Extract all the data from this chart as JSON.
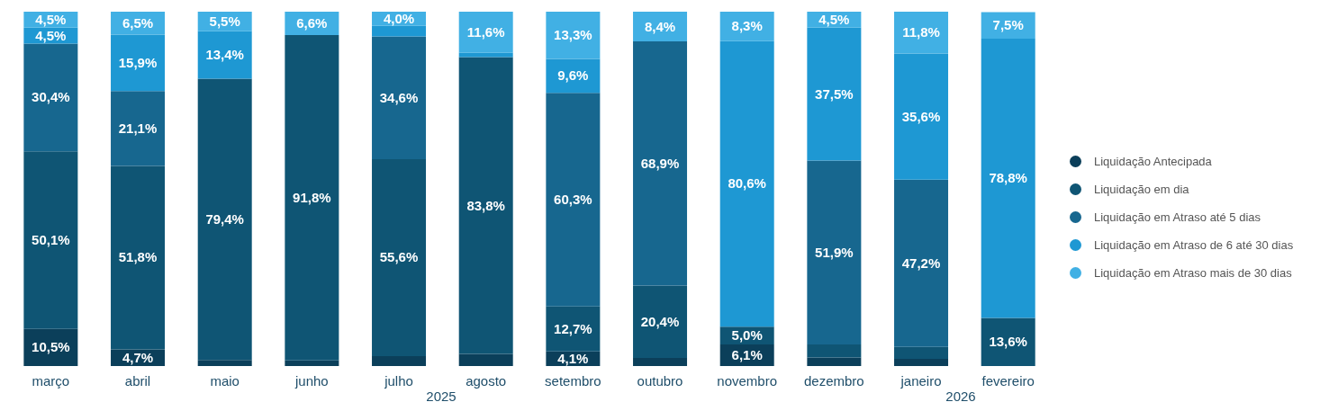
{
  "chart_data": {
    "type": "bar",
    "stacked": true,
    "categories": [
      "março",
      "abril",
      "maio",
      "junho",
      "julho",
      "agosto",
      "setembro",
      "outubro",
      "novembro",
      "dezembro",
      "janeiro",
      "fevereiro"
    ],
    "ylim": [
      0,
      100
    ],
    "tick_labels": "x",
    "legend": "right",
    "grid": false,
    "series": [
      {
        "name": "Liquidação Antecipada",
        "color": "#0b3f5a",
        "values": [
          10.5,
          4.7,
          1.7,
          1.6,
          2.8,
          3.4,
          4.1,
          2.3,
          6.1,
          2.4,
          2.0,
          0
        ],
        "value_labels": [
          "10,5%",
          "4,7%",
          null,
          null,
          null,
          null,
          "4,1%",
          null,
          "6,1%",
          null,
          null,
          null
        ]
      },
      {
        "name": "Liquidação em dia",
        "color": "#0f5574",
        "values": [
          50.1,
          51.8,
          79.4,
          91.8,
          55.6,
          83.8,
          12.7,
          20.4,
          5.0,
          3.7,
          3.4,
          13.6
        ],
        "value_labels": [
          "50,1%",
          "51,8%",
          "79,4%",
          "91,8%",
          "55,6%",
          "83,8%",
          "12,7%",
          "20,4%",
          "5,0%",
          null,
          null,
          "13,6%"
        ]
      },
      {
        "name": "Liquidação em Atraso até 5 dias",
        "color": "#17678f",
        "values": [
          30.4,
          21.1,
          0,
          0,
          34.6,
          0,
          60.3,
          68.9,
          0,
          51.9,
          47.2,
          0
        ],
        "value_labels": [
          "30,4%",
          "21,1%",
          null,
          null,
          "34,6%",
          null,
          "60,3%",
          "68,9%",
          null,
          "51,9%",
          "47,2%",
          null
        ]
      },
      {
        "name": "Liquidação em Atraso de 6 até 30 dias",
        "color": "#1e98d3",
        "values": [
          4.5,
          15.9,
          13.4,
          0,
          3.0,
          1.2,
          9.6,
          0,
          80.6,
          37.5,
          35.6,
          78.8
        ],
        "value_labels": [
          "4,5%",
          "15,9%",
          "13,4%",
          null,
          null,
          null,
          "9,6%",
          null,
          "80,6%",
          "37,5%",
          "35,6%",
          "78,8%"
        ]
      },
      {
        "name": "Liquidação em Atraso mais de 30 dias",
        "color": "#41b0e4",
        "values": [
          4.5,
          6.5,
          5.5,
          6.6,
          4.0,
          11.6,
          13.3,
          8.4,
          8.3,
          4.5,
          11.8,
          7.5
        ],
        "value_labels": [
          "4,5%",
          "6,5%",
          "5,5%",
          "6,6%",
          "4,0%",
          "11,6%",
          "13,3%",
          "8,4%",
          "8,3%",
          "4,5%",
          "11,8%",
          "7,5%"
        ]
      }
    ],
    "annotations": [
      "2025",
      "2026"
    ]
  }
}
